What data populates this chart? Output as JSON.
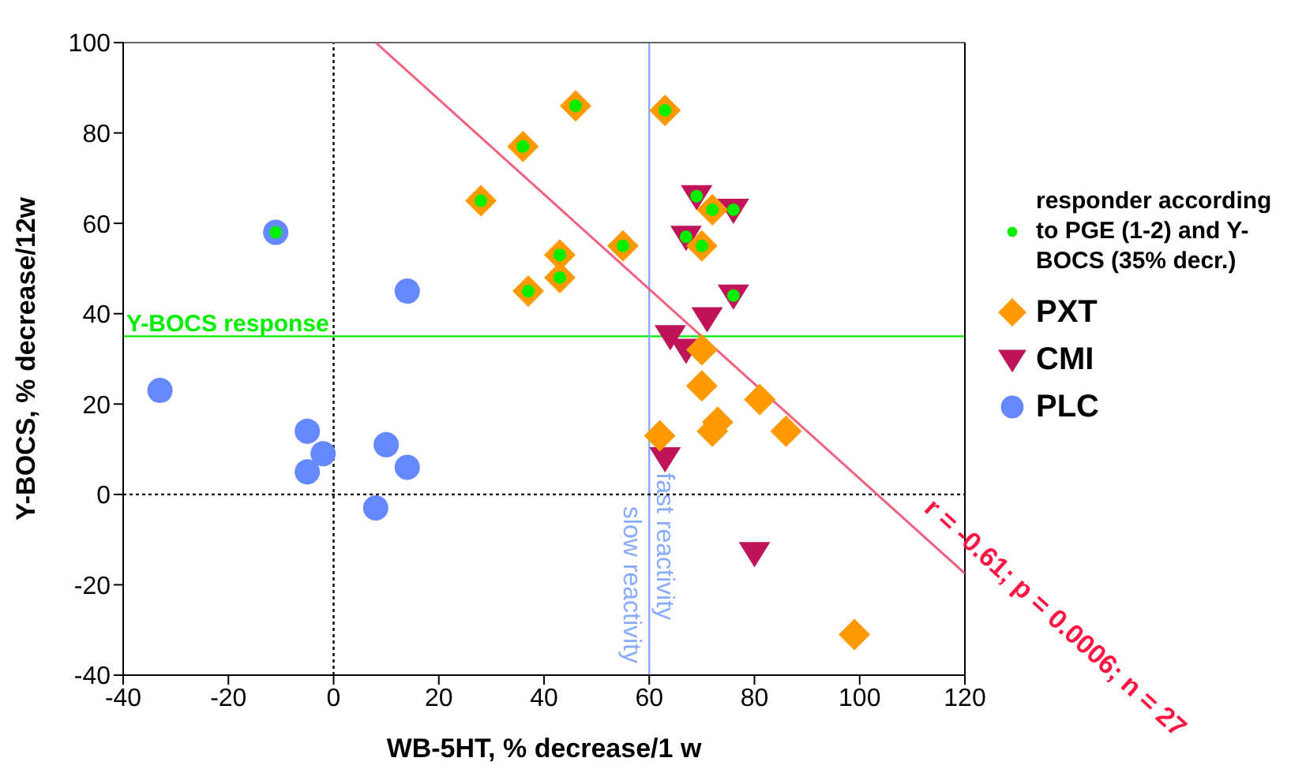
{
  "chart_data": {
    "type": "scatter",
    "xlabel": "WB-5HT, % decrease/1 w",
    "ylabel": "Y-BOCS, % decrease/12w",
    "xlim": [
      -40,
      120
    ],
    "xticks": [
      -40,
      -20,
      0,
      20,
      40,
      60,
      80,
      100,
      120
    ],
    "ylim": [
      -40,
      100
    ],
    "yticks": [
      -40,
      -20,
      0,
      20,
      40,
      60,
      80,
      100
    ],
    "legend": "right",
    "series": [
      {
        "name": "responder according to PGE (1-2) and Y-BOCS (35% decr.)",
        "color": "#00ee00",
        "marker": "circle",
        "x": [
          -11,
          28,
          36,
          37,
          43,
          43,
          46,
          63,
          72,
          55,
          70,
          69,
          76,
          67,
          76
        ],
        "values": [
          58,
          65,
          77,
          45,
          48,
          53,
          86,
          85,
          63,
          55,
          55,
          66,
          63,
          57,
          44
        ]
      },
      {
        "name": "PXT",
        "color": "#ff9900",
        "marker": "diamond",
        "x": [
          28,
          36,
          37,
          43,
          43,
          46,
          63,
          72,
          55,
          70,
          70,
          70,
          81,
          73,
          72,
          86,
          62,
          99
        ],
        "values": [
          65,
          77,
          45,
          48,
          53,
          86,
          85,
          63,
          55,
          55,
          32,
          24,
          21,
          16,
          14,
          14,
          13,
          -31
        ]
      },
      {
        "name": "CMI",
        "color": "#c0145a",
        "marker": "triangle",
        "x": [
          69,
          76,
          67,
          76,
          71,
          64,
          67,
          63,
          80
        ],
        "values": [
          66,
          63,
          57,
          44,
          39,
          35,
          32,
          8,
          -13
        ]
      },
      {
        "name": "PLC",
        "color": "#6688ff",
        "marker": "circle",
        "x": [
          -11,
          14,
          -33,
          -5,
          -2,
          -5,
          10,
          14,
          8
        ],
        "values": [
          58,
          45,
          23,
          14,
          9,
          5,
          11,
          6,
          -3
        ]
      },
      {
        "type": "line",
        "color": "#f06080",
        "x": [
          8,
          120
        ],
        "values": [
          100,
          -17.5
        ]
      }
    ],
    "ref_lines": [
      {
        "axis": "y",
        "value": 35,
        "label": "Y-BOCS response",
        "color": "#00ee00"
      },
      {
        "axis": "x",
        "value": 60,
        "label": "fast reactivity",
        "color": "#88aaff"
      },
      {
        "axis": "x",
        "value": 0,
        "color": "#000000",
        "line_style": "dotted"
      },
      {
        "axis": "y",
        "value": 0,
        "color": "#000000",
        "line_style": "dotted"
      }
    ],
    "annotations": [
      "r = -0.61; p = 0.0006; n = 27",
      {
        "text": "slow reactivity",
        "x": 60,
        "y": -20
      }
    ]
  }
}
